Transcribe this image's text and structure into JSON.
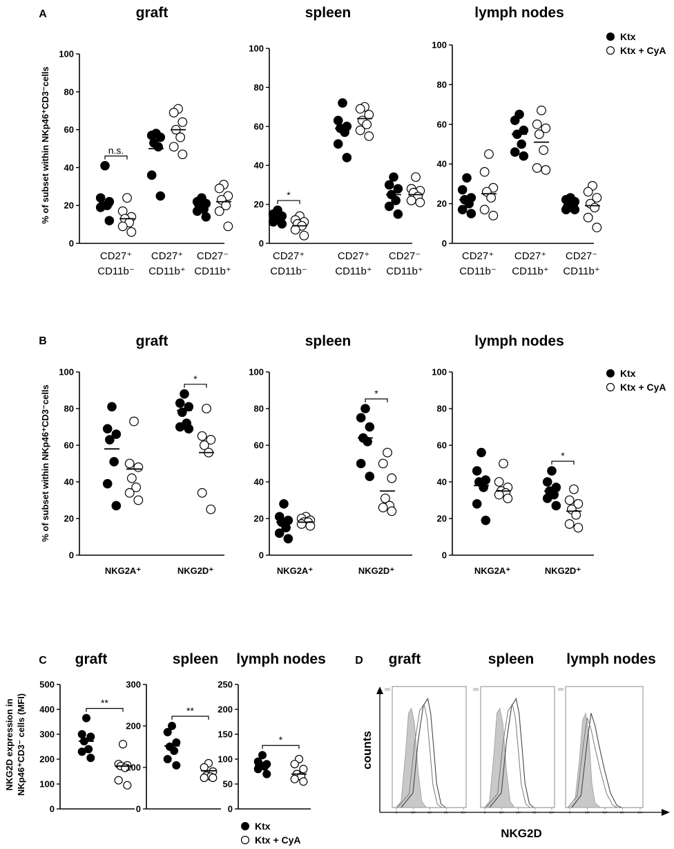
{
  "panels": {
    "A": "A",
    "B": "B",
    "C": "C",
    "D": "D"
  },
  "ylabel_AB": "% of subset within NKp46⁺CD3⁻cells",
  "ylabel_C": [
    "NKG2D expression in",
    "NKp46⁺CD3⁻ cells (MFI)"
  ],
  "legend": {
    "ktx": "Ktx",
    "ktx_cya": "Ktx + CyA"
  },
  "chart_data": [
    {
      "id": "A-graft",
      "panel": "A",
      "type": "scatter",
      "title": "graft",
      "ylim": [
        0,
        100
      ],
      "yticks": [
        0,
        20,
        40,
        60,
        80,
        100
      ],
      "categories": [
        [
          "CD27⁺",
          "CD11b⁻"
        ],
        [
          "CD27⁺",
          "CD11b⁺"
        ],
        [
          "CD27⁻",
          "CD11b⁺"
        ]
      ],
      "series": [
        {
          "name": "Ktx",
          "filled": true,
          "values": [
            [
              41,
              24,
              22,
              20,
              20,
              19,
              12
            ],
            [
              58,
              57,
              56,
              53,
              51,
              36,
              25
            ],
            [
              24,
              22,
              21,
              19,
              18,
              17,
              14
            ]
          ],
          "means": [
            20,
            50,
            20
          ]
        },
        {
          "name": "Ktx + CyA",
          "filled": false,
          "values": [
            [
              24,
              17,
              14,
              13,
              11,
              9,
              6
            ],
            [
              71,
              69,
              64,
              60,
              56,
              51,
              47
            ],
            [
              31,
              29,
              25,
              23,
              20,
              17,
              9
            ]
          ],
          "means": [
            13,
            60,
            22
          ]
        }
      ],
      "significance": [
        {
          "category": 0,
          "text": "n.s."
        }
      ]
    },
    {
      "id": "A-spleen",
      "panel": "A",
      "type": "scatter",
      "title": "spleen",
      "ylim": [
        0,
        100
      ],
      "yticks": [
        0,
        20,
        40,
        60,
        80,
        100
      ],
      "categories": [
        [
          "CD27⁺",
          "CD11b⁻"
        ],
        [
          "CD27⁺",
          "CD11b⁺"
        ],
        [
          "CD27⁻",
          "CD11b⁺"
        ]
      ],
      "series": [
        {
          "name": "Ktx",
          "filled": true,
          "values": [
            [
              17,
              15,
              14,
              13,
              12,
              11,
              10
            ],
            [
              72,
              63,
              60,
              59,
              57,
              51,
              44
            ],
            [
              34,
              30,
              28,
              25,
              22,
              19,
              15
            ]
          ],
          "means": [
            13,
            59,
            25
          ]
        },
        {
          "name": "Ktx + CyA",
          "filled": false,
          "values": [
            [
              14,
              12,
              11,
              10,
              9,
              7,
              4
            ],
            [
              70,
              69,
              66,
              63,
              61,
              58,
              55
            ],
            [
              34,
              28,
              27,
              26,
              24,
              22,
              21
            ]
          ],
          "means": [
            9,
            64,
            25
          ]
        }
      ],
      "significance": [
        {
          "category": 0,
          "text": "*"
        }
      ]
    },
    {
      "id": "A-lymph",
      "panel": "A",
      "type": "scatter",
      "title": "lymph nodes",
      "ylim": [
        0,
        100
      ],
      "yticks": [
        0,
        20,
        40,
        60,
        80,
        100
      ],
      "categories": [
        [
          "CD27⁺",
          "CD11b⁻"
        ],
        [
          "CD27⁺",
          "CD11b⁺"
        ],
        [
          "CD27⁻",
          "CD11b⁺"
        ]
      ],
      "series": [
        {
          "name": "Ktx",
          "filled": true,
          "values": [
            [
              33,
              27,
              23,
              22,
              20,
              17,
              15
            ],
            [
              65,
              62,
              57,
              55,
              50,
              46,
              44
            ],
            [
              23,
              22,
              21,
              19,
              18,
              17,
              17
            ]
          ],
          "means": [
            22,
            55,
            19
          ]
        },
        {
          "name": "Ktx + CyA",
          "filled": false,
          "values": [
            [
              45,
              36,
              28,
              26,
              23,
              17,
              14
            ],
            [
              67,
              60,
              58,
              55,
              47,
              38,
              37
            ],
            [
              29,
              26,
              23,
              20,
              18,
              13,
              8
            ]
          ],
          "means": [
            25,
            51,
            19
          ]
        }
      ]
    },
    {
      "id": "B-graft",
      "panel": "B",
      "type": "scatter",
      "title": "graft",
      "ylim": [
        0,
        100
      ],
      "yticks": [
        0,
        20,
        40,
        60,
        80,
        100
      ],
      "categories": [
        "NKG2A⁺",
        "NKG2D⁺"
      ],
      "series": [
        {
          "name": "Ktx",
          "filled": true,
          "values": [
            [
              81,
              69,
              66,
              63,
              51,
              39,
              27
            ],
            [
              88,
              83,
              81,
              78,
              72,
              70,
              69
            ]
          ],
          "means": [
            58,
            79
          ]
        },
        {
          "name": "Ktx + CyA",
          "filled": false,
          "values": [
            [
              73,
              50,
              48,
              42,
              37,
              34,
              30
            ],
            [
              80,
              65,
              63,
              60,
              56,
              34,
              25
            ]
          ],
          "means": [
            47,
            56
          ]
        }
      ],
      "significance": [
        {
          "category": 1,
          "text": "*"
        }
      ]
    },
    {
      "id": "B-spleen",
      "panel": "B",
      "type": "scatter",
      "title": "spleen",
      "ylim": [
        0,
        100
      ],
      "yticks": [
        0,
        20,
        40,
        60,
        80,
        100
      ],
      "categories": [
        "NKG2A⁺",
        "NKG2D⁺"
      ],
      "series": [
        {
          "name": "Ktx",
          "filled": true,
          "values": [
            [
              28,
              21,
              19,
              18,
              15,
              12,
              9
            ],
            [
              80,
              75,
              70,
              64,
              62,
              50,
              43
            ]
          ],
          "means": [
            18,
            64
          ]
        },
        {
          "name": "Ktx + CyA",
          "filled": false,
          "values": [
            [
              21,
              20,
              19,
              18,
              18,
              17,
              16
            ],
            [
              56,
              50,
              42,
              31,
              27,
              26,
              24
            ]
          ],
          "means": [
            18,
            35
          ]
        }
      ],
      "significance": [
        {
          "category": 1,
          "text": "*"
        }
      ]
    },
    {
      "id": "B-lymph",
      "panel": "B",
      "type": "scatter",
      "title": "lymph nodes",
      "ylim": [
        0,
        100
      ],
      "yticks": [
        0,
        20,
        40,
        60,
        80,
        100
      ],
      "categories": [
        "NKG2A⁺",
        "NKG2D⁺"
      ],
      "series": [
        {
          "name": "Ktx",
          "filled": true,
          "values": [
            [
              56,
              46,
              41,
              40,
              37,
              28,
              19
            ],
            [
              46,
              40,
              37,
              35,
              33,
              31,
              27
            ]
          ],
          "means": [
            38,
            35
          ]
        },
        {
          "name": "Ktx + CyA",
          "filled": false,
          "values": [
            [
              50,
              40,
              37,
              35,
              34,
              33,
              31
            ],
            [
              36,
              30,
              28,
              25,
              22,
              17,
              15
            ]
          ],
          "means": [
            35,
            24
          ]
        }
      ],
      "significance": [
        {
          "category": 1,
          "text": "*"
        }
      ]
    },
    {
      "id": "C-graft",
      "panel": "C",
      "type": "scatter",
      "title": "graft",
      "ylim": [
        0,
        500
      ],
      "yticks": [
        0,
        100,
        200,
        300,
        400,
        500
      ],
      "categories": [
        "",
        ""
      ],
      "series": [
        {
          "name": "Ktx",
          "filled": true,
          "values": [
            [
              365,
              300,
              290,
              272,
              240,
              230,
              205
            ],
            []
          ],
          "means": [
            272,
            null
          ]
        },
        {
          "name": "Ktx + CyA",
          "filled": false,
          "values": [
            [],
            [
              260,
              180,
              175,
              172,
              165,
              115,
              95
            ]
          ],
          "means": [
            null,
            172
          ]
        }
      ],
      "significance": [
        {
          "category": "both",
          "text": "**"
        }
      ]
    },
    {
      "id": "C-spleen",
      "panel": "C",
      "type": "scatter",
      "title": "spleen",
      "ylim": [
        0,
        300
      ],
      "yticks": [
        0,
        100,
        200,
        300
      ],
      "categories": [
        "",
        ""
      ],
      "series": [
        {
          "name": "Ktx",
          "filled": true,
          "values": [
            [
              200,
              185,
              160,
              150,
              140,
              120,
              105
            ],
            []
          ],
          "means": [
            152,
            null
          ]
        },
        {
          "name": "Ktx + CyA",
          "filled": false,
          "values": [
            [],
            [
              110,
              100,
              90,
              80,
              78,
              75,
              75
            ]
          ],
          "means": [
            null,
            92
          ]
        }
      ],
      "significance": [
        {
          "category": "both",
          "text": "**"
        }
      ]
    },
    {
      "id": "C-lymph",
      "panel": "C",
      "type": "scatter",
      "title": "lymph nodes",
      "ylim": [
        0,
        250
      ],
      "yticks": [
        0,
        50,
        100,
        150,
        200,
        250
      ],
      "categories": [
        "",
        ""
      ],
      "series": [
        {
          "name": "Ktx",
          "filled": true,
          "values": [
            [
              108,
              95,
              90,
              88,
              85,
              80,
              70
            ],
            []
          ],
          "means": [
            87,
            null
          ]
        },
        {
          "name": "Ktx + CyA",
          "filled": false,
          "values": [
            [],
            [
              100,
              90,
              80,
              70,
              65,
              60,
              55
            ]
          ],
          "means": [
            null,
            70
          ]
        }
      ],
      "significance": [
        {
          "category": "both",
          "text": "*"
        }
      ]
    },
    {
      "id": "D",
      "panel": "D",
      "type": "histogram",
      "titles": [
        "graft",
        "spleen",
        "lymph nodes"
      ],
      "ylabel": "counts",
      "xlabel": "NKG2D",
      "ytick_label": "100",
      "xtick_labels": [
        "0",
        "10²",
        "10³",
        "10⁴",
        "10⁵"
      ]
    }
  ]
}
